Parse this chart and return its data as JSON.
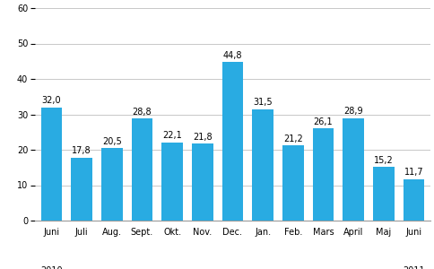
{
  "categories": [
    "Juni",
    "Juli",
    "Aug.",
    "Sept.",
    "Okt.",
    "Nov.",
    "Dec.",
    "Jan.",
    "Feb.",
    "Mars",
    "April",
    "Maj",
    "Juni"
  ],
  "values": [
    32.0,
    17.8,
    20.5,
    28.8,
    22.1,
    21.8,
    44.8,
    31.5,
    21.2,
    26.1,
    28.9,
    15.2,
    11.7
  ],
  "bar_color": "#29ABE2",
  "ylim": [
    0,
    60
  ],
  "yticks": [
    0,
    10,
    20,
    30,
    40,
    50,
    60
  ],
  "label_fontsize": 7.0,
  "value_fontsize": 7.0,
  "tick_fontsize": 7.0,
  "background_color": "#ffffff",
  "grid_color": "#c8c8c8",
  "year_2010_idx": 0,
  "year_2011_idx": 12
}
